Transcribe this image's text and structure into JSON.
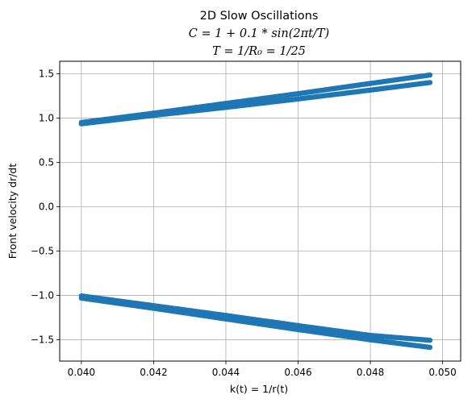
{
  "chart_data": {
    "type": "scatter",
    "title": "2D Slow Oscillations",
    "subtitle_lines": [
      "C = 1 + 0.1 * sin(2πt/T)",
      "T = 1/R₀ = 1/25"
    ],
    "xlabel": "k(t) = 1/r(t)",
    "ylabel": "Front velocity dr/dt",
    "xlim": [
      0.0394,
      0.0505
    ],
    "ylim": [
      -1.74,
      1.64
    ],
    "xticks": [
      0.04,
      0.042,
      0.044,
      0.046,
      0.048,
      0.05
    ],
    "xtick_labels": [
      "0.040",
      "0.042",
      "0.044",
      "0.046",
      "0.048",
      "0.050"
    ],
    "yticks": [
      -1.5,
      -1.0,
      -0.5,
      0.0,
      0.5,
      1.0,
      1.5
    ],
    "ytick_labels": [
      "−1.5",
      "−1.0",
      "−0.5",
      "0.0",
      "0.5",
      "1.0",
      "1.5"
    ],
    "grid": true,
    "legend": "none",
    "color": "#1f77b4",
    "series": [
      {
        "points": [
          [
            0.04,
            0.95
          ],
          [
            0.042,
            1.055
          ],
          [
            0.044,
            1.165
          ],
          [
            0.046,
            1.275
          ],
          [
            0.048,
            1.39
          ],
          [
            0.04965,
            1.485
          ]
        ]
      },
      {
        "points": [
          [
            0.04,
            0.935
          ],
          [
            0.042,
            1.03
          ],
          [
            0.044,
            1.12
          ],
          [
            0.046,
            1.215
          ],
          [
            0.048,
            1.315
          ],
          [
            0.04965,
            1.4
          ]
        ]
      },
      {
        "points": [
          [
            0.04,
            -1.005
          ],
          [
            0.042,
            -1.115
          ],
          [
            0.044,
            -1.225
          ],
          [
            0.046,
            -1.34
          ],
          [
            0.048,
            -1.45
          ],
          [
            0.04965,
            -1.505
          ]
        ]
      },
      {
        "points": [
          [
            0.04,
            -1.03
          ],
          [
            0.042,
            -1.145
          ],
          [
            0.044,
            -1.265
          ],
          [
            0.046,
            -1.385
          ],
          [
            0.048,
            -1.5
          ],
          [
            0.04965,
            -1.585
          ]
        ]
      }
    ]
  }
}
